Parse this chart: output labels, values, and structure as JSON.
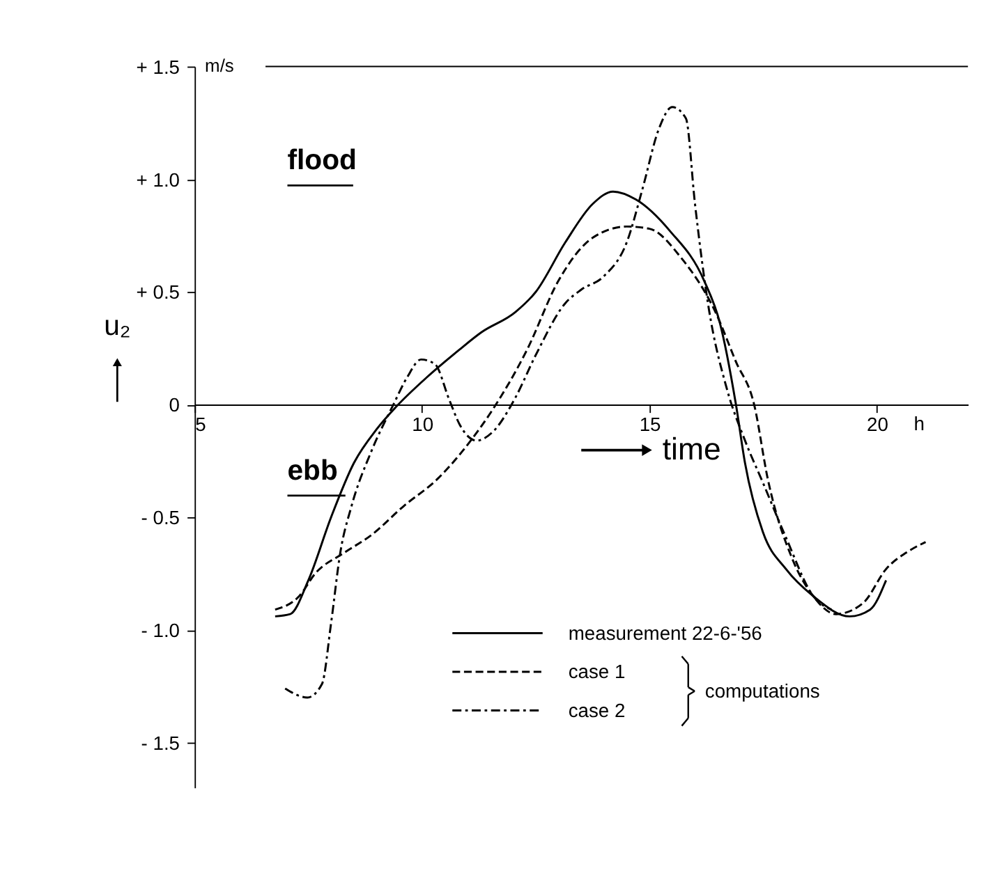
{
  "chart_data": {
    "type": "line",
    "xlabel": "time",
    "ylabel": "u₂",
    "xlim": [
      5,
      22
    ],
    "ylim": [
      -1.7,
      1.5
    ],
    "xticks": [
      5,
      10,
      15,
      20
    ],
    "yticks": [
      {
        "value": 1.5,
        "label": "+ 1.5"
      },
      {
        "value": 1.0,
        "label": "+ 1.0"
      },
      {
        "value": 0.5,
        "label": "+ 0.5"
      },
      0,
      {
        "value": -0.5,
        "label": "- 0.5"
      },
      {
        "value": -1.0,
        "label": "- 1.0"
      },
      {
        "value": -1.5,
        "label": "- 1.5"
      }
    ],
    "ref_lines": [
      {
        "axis": "y",
        "value": 1.5,
        "label": "m/s"
      }
    ],
    "annotations": [
      "flood",
      "ebb",
      "h",
      "computations"
    ],
    "legend": "bottom",
    "grid": false,
    "marker": "none",
    "series": [
      {
        "name": "measurement 22-6-'56",
        "color": "#000000",
        "line_style": "solid",
        "x": [
          6.77,
          7.1,
          7.5,
          8.0,
          8.5,
          9.0,
          9.43,
          10.1,
          10.8,
          11.3,
          12.05,
          12.5,
          13.15,
          13.75,
          14.2,
          14.7,
          15.45,
          16.2,
          16.55,
          16.9,
          17.1,
          17.5,
          18.0,
          18.6,
          19.4,
          19.85,
          20.2
        ],
        "values": [
          -0.94,
          -0.93,
          -0.78,
          -0.5,
          -0.26,
          -0.11,
          -0.01,
          0.12,
          0.24,
          0.32,
          0.41,
          0.5,
          0.72,
          0.89,
          0.945,
          0.91,
          0.77,
          0.55,
          0.36,
          0.0,
          -0.26,
          -0.57,
          -0.73,
          -0.85,
          -0.94,
          -0.91,
          -0.78
        ]
      },
      {
        "name": "case 1",
        "color": "#000000",
        "line_style": "dashed",
        "x": [
          6.77,
          7.3,
          7.65,
          8.27,
          8.88,
          9.6,
          10.34,
          11.07,
          11.56,
          12.3,
          13.0,
          13.75,
          14.5,
          15.0,
          15.7,
          16.45,
          16.9,
          17.3,
          17.6,
          18.15,
          18.6,
          19.1,
          19.7,
          20.2,
          20.7,
          21.07
        ],
        "values": [
          -0.91,
          -0.85,
          -0.75,
          -0.66,
          -0.58,
          -0.45,
          -0.33,
          -0.16,
          -0.02,
          0.24,
          0.55,
          0.74,
          0.79,
          0.78,
          0.65,
          0.41,
          0.19,
          0.0,
          -0.33,
          -0.69,
          -0.85,
          -0.93,
          -0.88,
          -0.73,
          -0.65,
          -0.61
        ]
      },
      {
        "name": "case 2",
        "color": "#000000",
        "line_style": "dashdot",
        "x": [
          6.99,
          7.48,
          7.8,
          8.0,
          8.2,
          8.45,
          8.88,
          9.37,
          9.67,
          9.98,
          10.28,
          10.6,
          10.83,
          11.2,
          11.56,
          12.05,
          12.5,
          13.15,
          13.5,
          14.0,
          14.5,
          14.85,
          15.2,
          15.5,
          15.8,
          16.0,
          16.3,
          16.7,
          17.1,
          17.5,
          18.0,
          18.6,
          19.0
        ],
        "values": [
          -1.26,
          -1.3,
          -1.24,
          -0.97,
          -0.66,
          -0.45,
          -0.21,
          0.0,
          0.12,
          0.2,
          0.18,
          0.02,
          -0.09,
          -0.16,
          -0.12,
          0.03,
          0.22,
          0.45,
          0.51,
          0.57,
          0.72,
          0.96,
          1.22,
          1.32,
          1.27,
          0.89,
          0.43,
          0.07,
          -0.16,
          -0.35,
          -0.59,
          -0.85,
          -0.91
        ]
      }
    ]
  }
}
